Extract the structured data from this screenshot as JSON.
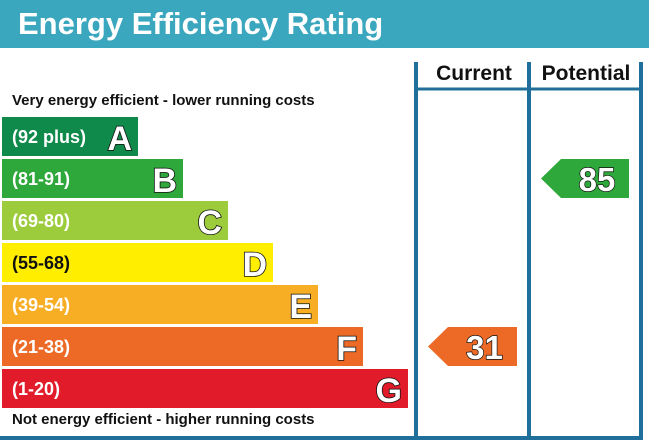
{
  "chart_data": {
    "type": "bar",
    "title": "Energy Efficiency Rating",
    "columns": [
      "Current",
      "Potential"
    ],
    "top_note": "Very energy efficient - lower running costs",
    "bottom_note": "Not energy efficient - higher running costs",
    "bands": [
      {
        "range": "(92 plus)",
        "letter": "A",
        "min": 92,
        "max": 100,
        "color": "#0f8a4a"
      },
      {
        "range": "(81-91)",
        "letter": "B",
        "min": 81,
        "max": 91,
        "color": "#2ea83a"
      },
      {
        "range": "(69-80)",
        "letter": "C",
        "min": 69,
        "max": 80,
        "color": "#9ccc3c"
      },
      {
        "range": "(55-68)",
        "letter": "D",
        "min": 55,
        "max": 68,
        "color": "#ffee00"
      },
      {
        "range": "(39-54)",
        "letter": "E",
        "min": 39,
        "max": 54,
        "color": "#f7ae24"
      },
      {
        "range": "(21-38)",
        "letter": "F",
        "min": 21,
        "max": 38,
        "color": "#ec6a25"
      },
      {
        "range": "(1-20)",
        "letter": "G",
        "min": 1,
        "max": 20,
        "color": "#e21b2a"
      }
    ],
    "ratings": [
      {
        "column": "Current",
        "value": 31,
        "band": "F",
        "color": "#ec6a25"
      },
      {
        "column": "Potential",
        "value": 85,
        "band": "B",
        "color": "#2ea83a"
      }
    ],
    "colors": {
      "frame": "#1f6f9a",
      "title_bar": "#3ba7be"
    }
  }
}
